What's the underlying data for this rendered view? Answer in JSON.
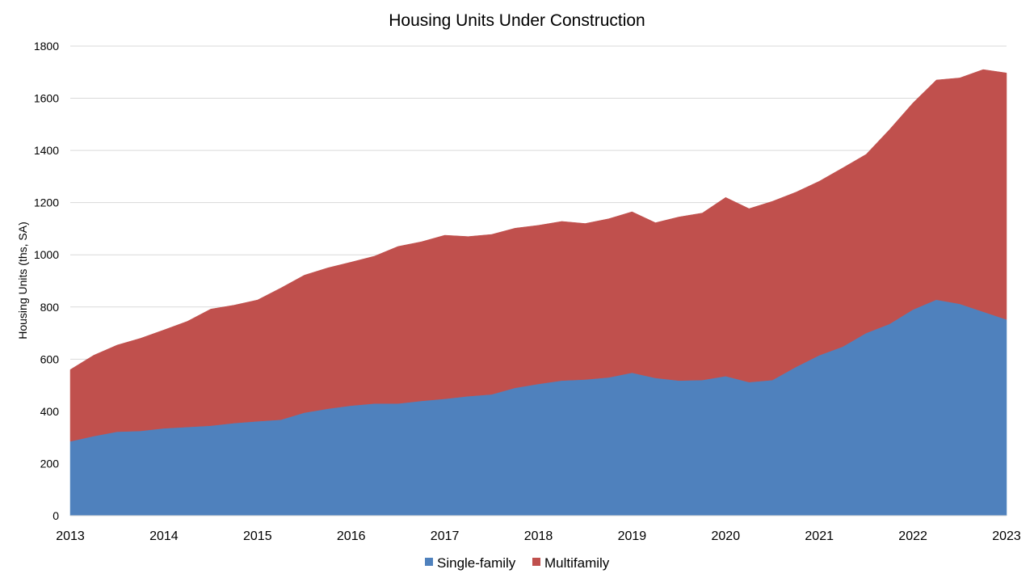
{
  "chart_data": {
    "type": "area",
    "stacked": true,
    "title": "Housing Units Under Construction",
    "ylabel": "Housing Units (ths, SA)",
    "xlabel": "",
    "ylim": [
      0,
      1800
    ],
    "yticks": [
      0,
      200,
      400,
      600,
      800,
      1000,
      1200,
      1400,
      1600,
      1800
    ],
    "xlim": [
      2013,
      2023
    ],
    "xticks": [
      "2013",
      "2014",
      "2015",
      "2016",
      "2017",
      "2018",
      "2019",
      "2020",
      "2021",
      "2022",
      "2023"
    ],
    "grid": true,
    "legend_position": "bottom",
    "x": [
      2013.0,
      2013.25,
      2013.5,
      2013.75,
      2014.0,
      2014.25,
      2014.5,
      2014.75,
      2015.0,
      2015.25,
      2015.5,
      2015.75,
      2016.0,
      2016.25,
      2016.5,
      2016.75,
      2017.0,
      2017.25,
      2017.5,
      2017.75,
      2018.0,
      2018.25,
      2018.5,
      2018.75,
      2019.0,
      2019.25,
      2019.5,
      2019.75,
      2020.0,
      2020.25,
      2020.5,
      2020.75,
      2021.0,
      2021.25,
      2021.5,
      2021.75,
      2022.0,
      2022.25,
      2022.5,
      2022.75,
      2023.0
    ],
    "series": [
      {
        "name": "Single-family",
        "color": "#4f81bd",
        "values": [
          285,
          305,
          322,
          325,
          335,
          340,
          345,
          355,
          362,
          368,
          395,
          410,
          422,
          430,
          430,
          440,
          448,
          458,
          465,
          490,
          505,
          518,
          522,
          530,
          548,
          528,
          518,
          520,
          535,
          512,
          520,
          570,
          615,
          648,
          700,
          735,
          790,
          828,
          812,
          782,
          752
        ]
      },
      {
        "name": "Multifamily",
        "color": "#c0504d",
        "values": [
          275,
          310,
          332,
          355,
          377,
          405,
          447,
          452,
          465,
          505,
          527,
          540,
          550,
          565,
          602,
          610,
          627,
          612,
          613,
          612,
          608,
          610,
          598,
          608,
          617,
          595,
          627,
          640,
          685,
          665,
          685,
          670,
          667,
          685,
          685,
          745,
          792,
          842,
          866,
          928,
          945
        ]
      }
    ]
  }
}
